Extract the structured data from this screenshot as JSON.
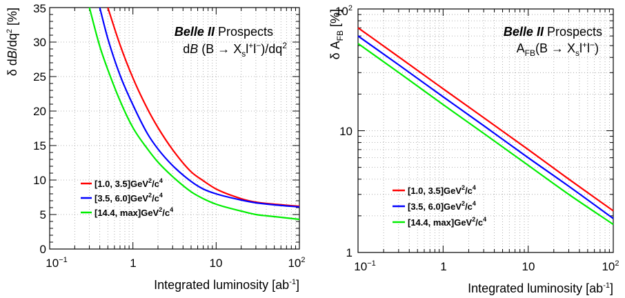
{
  "chart_data": [
    {
      "type": "line",
      "title": "Belle II Prospects",
      "title_bold_part": "Belle II",
      "title_rest": "Prospects",
      "subtitle": "dB (B → Xsl+l−)/dq2",
      "xlabel": "Integrated luminosity [ab-1]",
      "ylabel": "δ dB/dq2 [%]",
      "xscale": "log",
      "yscale": "linear",
      "xlim": [
        0.1,
        100
      ],
      "ylim": [
        0,
        35
      ],
      "grid": true,
      "legend_position": "bottom-left",
      "x_tick_labels": [
        "10-1",
        "1",
        "10",
        "102"
      ],
      "y_tick_labels": [
        "0",
        "5",
        "10",
        "15",
        "20",
        "25",
        "30",
        "35"
      ],
      "x": [
        0.3,
        0.4,
        0.5,
        0.7,
        1,
        1.5,
        2,
        3,
        5,
        7,
        10,
        20,
        30,
        50,
        100
      ],
      "series": [
        {
          "name": "[1.0, 3.5]GeV2/c4",
          "color": "#ff0000",
          "values": [
            null,
            null,
            35,
            29.6,
            24.8,
            20.3,
            17.6,
            14.4,
            11.2,
            9.9,
            8.7,
            7.3,
            6.8,
            6.5,
            6.2
          ]
        },
        {
          "name": "[3.5, 6.0]GeV2/c4",
          "color": "#0000ff",
          "values": [
            null,
            35,
            30.5,
            25.2,
            20.9,
            16.7,
            14.5,
            12.1,
            9.8,
            8.7,
            8,
            7.1,
            6.7,
            6.4,
            6.1
          ]
        },
        {
          "name": "[14.4, max]GeV2/c4",
          "color": "#00ee00",
          "values": [
            35,
            29.4,
            26,
            21.5,
            17.6,
            14.5,
            12.6,
            10.5,
            8.3,
            7.3,
            6.5,
            5.5,
            5,
            4.7,
            4.3
          ]
        }
      ]
    },
    {
      "type": "line",
      "title": "Belle II Prospects",
      "title_bold_part": "Belle II",
      "title_rest": "Prospects",
      "subtitle": "AFB(B → Xsl+l−)",
      "xlabel": "Integrated luminosity [ab-1]",
      "ylabel": "δ AFB [%]",
      "xscale": "log",
      "yscale": "log",
      "xlim": [
        0.1,
        100
      ],
      "ylim": [
        1,
        100
      ],
      "grid": true,
      "legend_position": "bottom-left",
      "x_tick_labels": [
        "10-1",
        "1",
        "10",
        "102"
      ],
      "y_tick_labels": [
        "1",
        "10",
        "102"
      ],
      "x": [
        0.1,
        0.3,
        1,
        3,
        10,
        30,
        100
      ],
      "series": [
        {
          "name": "[1.0, 3.5]GeV2/c4",
          "color": "#ff0000",
          "values": [
            70,
            40.5,
            22.1,
            12.8,
            7.0,
            4.0,
            2.2
          ]
        },
        {
          "name": "[3.5, 6.0]GeV2/c4",
          "color": "#0000ff",
          "values": [
            60,
            34.8,
            19.0,
            11.0,
            6.0,
            3.5,
            1.9
          ]
        },
        {
          "name": "[14.4, max]GeV2/c4",
          "color": "#00ee00",
          "values": [
            52,
            30.1,
            16.4,
            9.5,
            5.2,
            3.0,
            1.7
          ]
        }
      ]
    }
  ]
}
